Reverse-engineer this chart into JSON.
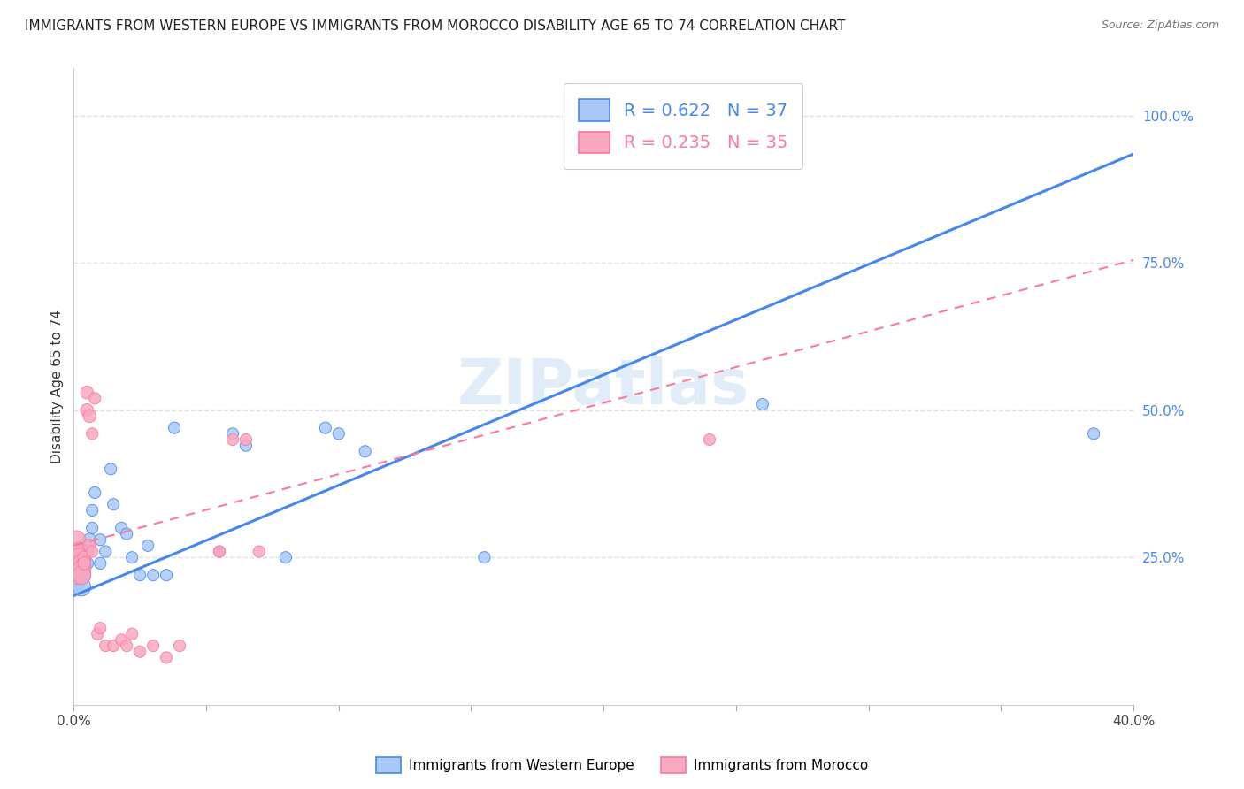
{
  "title": "IMMIGRANTS FROM WESTERN EUROPE VS IMMIGRANTS FROM MOROCCO DISABILITY AGE 65 TO 74 CORRELATION CHART",
  "source": "Source: ZipAtlas.com",
  "ylabel": "Disability Age 65 to 74",
  "ylabel_right_ticks": [
    "100.0%",
    "75.0%",
    "50.0%",
    "25.0%"
  ],
  "ylabel_right_vals": [
    1.0,
    0.75,
    0.5,
    0.25
  ],
  "xlim": [
    0.0,
    0.4
  ],
  "ylim": [
    0.0,
    1.08
  ],
  "watermark": "ZIPatlas",
  "legend_r_blue": "0.622",
  "legend_n_blue": "37",
  "legend_r_pink": "0.235",
  "legend_n_pink": "35",
  "blue_color": "#a8c8f8",
  "pink_color": "#f8a8c0",
  "blue_line_color": "#4488ee",
  "pink_line_color": "#ff7799",
  "blue_regression": [
    0.0,
    0.185,
    0.4,
    0.935
  ],
  "pink_regression": [
    0.0,
    0.27,
    0.4,
    0.755
  ],
  "blue_scatter": [
    [
      0.001,
      0.23
    ],
    [
      0.001,
      0.21
    ],
    [
      0.002,
      0.22
    ],
    [
      0.002,
      0.25
    ],
    [
      0.003,
      0.24
    ],
    [
      0.003,
      0.22
    ],
    [
      0.003,
      0.2
    ],
    [
      0.004,
      0.23
    ],
    [
      0.004,
      0.27
    ],
    [
      0.005,
      0.26
    ],
    [
      0.005,
      0.24
    ],
    [
      0.006,
      0.28
    ],
    [
      0.007,
      0.3
    ],
    [
      0.007,
      0.33
    ],
    [
      0.008,
      0.36
    ],
    [
      0.01,
      0.28
    ],
    [
      0.01,
      0.24
    ],
    [
      0.012,
      0.26
    ],
    [
      0.014,
      0.4
    ],
    [
      0.015,
      0.34
    ],
    [
      0.018,
      0.3
    ],
    [
      0.02,
      0.29
    ],
    [
      0.022,
      0.25
    ],
    [
      0.025,
      0.22
    ],
    [
      0.028,
      0.27
    ],
    [
      0.03,
      0.22
    ],
    [
      0.035,
      0.22
    ],
    [
      0.038,
      0.47
    ],
    [
      0.06,
      0.46
    ],
    [
      0.065,
      0.44
    ],
    [
      0.08,
      0.25
    ],
    [
      0.095,
      0.47
    ],
    [
      0.1,
      0.46
    ],
    [
      0.11,
      0.43
    ],
    [
      0.155,
      0.25
    ],
    [
      0.26,
      0.51
    ],
    [
      0.385,
      0.46
    ]
  ],
  "pink_scatter": [
    [
      0.001,
      0.28
    ],
    [
      0.001,
      0.25
    ],
    [
      0.001,
      0.22
    ],
    [
      0.002,
      0.25
    ],
    [
      0.002,
      0.26
    ],
    [
      0.002,
      0.25
    ],
    [
      0.003,
      0.24
    ],
    [
      0.003,
      0.23
    ],
    [
      0.003,
      0.22
    ],
    [
      0.004,
      0.25
    ],
    [
      0.004,
      0.24
    ],
    [
      0.005,
      0.53
    ],
    [
      0.005,
      0.5
    ],
    [
      0.006,
      0.49
    ],
    [
      0.006,
      0.27
    ],
    [
      0.007,
      0.26
    ],
    [
      0.007,
      0.46
    ],
    [
      0.008,
      0.52
    ],
    [
      0.009,
      0.12
    ],
    [
      0.01,
      0.13
    ],
    [
      0.012,
      0.1
    ],
    [
      0.015,
      0.1
    ],
    [
      0.018,
      0.11
    ],
    [
      0.02,
      0.1
    ],
    [
      0.022,
      0.12
    ],
    [
      0.025,
      0.09
    ],
    [
      0.03,
      0.1
    ],
    [
      0.035,
      0.08
    ],
    [
      0.04,
      0.1
    ],
    [
      0.055,
      0.26
    ],
    [
      0.055,
      0.26
    ],
    [
      0.06,
      0.45
    ],
    [
      0.065,
      0.45
    ],
    [
      0.07,
      0.26
    ],
    [
      0.24,
      0.45
    ]
  ],
  "grid_color": "#e0e0e0",
  "background_color": "#ffffff",
  "x_tick_positions": [
    0.0,
    0.05,
    0.1,
    0.15,
    0.2,
    0.25,
    0.3,
    0.35,
    0.4
  ],
  "x_label_only_ends": true
}
